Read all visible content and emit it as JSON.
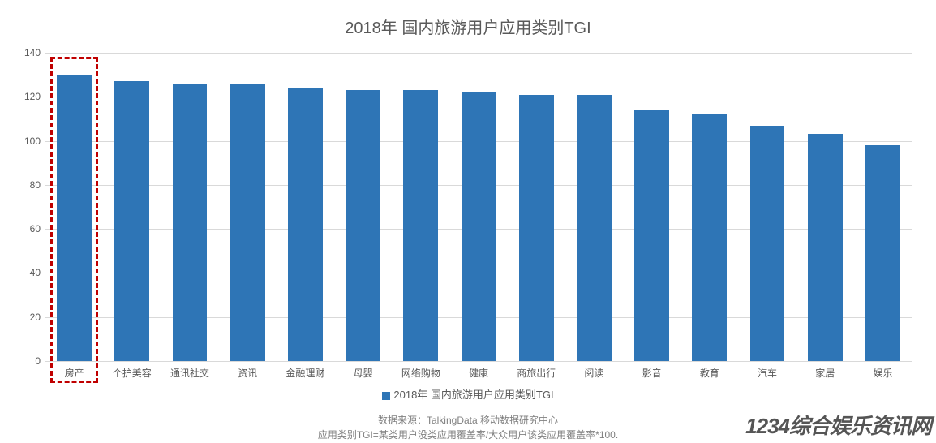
{
  "chart": {
    "type": "bar",
    "title": "2018年 国内旅游用户应用类别TGI",
    "title_fontsize": 20,
    "title_color": "#595959",
    "background_color": "#ffffff",
    "grid_color": "#d9d9d9",
    "label_color": "#595959",
    "label_fontsize": 12,
    "bar_color": "#2e75b6",
    "bar_width_ratio": 0.6,
    "ylim": [
      0,
      140
    ],
    "ytick_step": 20,
    "yticks": [
      0,
      20,
      40,
      60,
      80,
      100,
      120,
      140
    ],
    "categories": [
      "房产",
      "个护美容",
      "通讯社交",
      "资讯",
      "金融理财",
      "母婴",
      "网络购物",
      "健康",
      "商旅出行",
      "阅读",
      "影音",
      "教育",
      "汽车",
      "家居",
      "娱乐"
    ],
    "values": [
      130,
      127,
      126,
      126,
      124,
      123,
      123,
      122,
      121,
      121,
      114,
      112,
      107,
      103,
      98
    ],
    "highlight_index": 0,
    "highlight_box": {
      "color": "#c00000",
      "border_width": 3,
      "dash": "dashed"
    },
    "legend": {
      "label": "2018年 国内旅游用户应用类别TGI",
      "swatch_color": "#2e75b6",
      "fontsize": 13
    },
    "source": {
      "line1": "数据来源：TalkingData 移动数据研究中心",
      "line2": "应用类别TGI=某类用户没类应用覆盖率/大众用户该类应用覆盖率*100.",
      "fontsize": 12,
      "color": "#808080"
    }
  },
  "watermark": {
    "text": "1234综合娱乐资讯网",
    "color": "#555555",
    "fontsize": 26,
    "font_style": "italic",
    "font_weight": 700
  }
}
